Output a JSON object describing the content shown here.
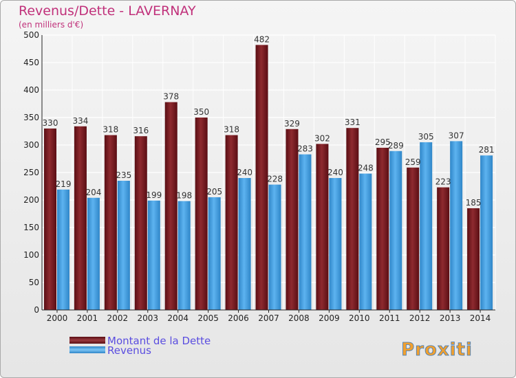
{
  "chart_data": {
    "type": "bar",
    "title": "Revenus/Dette - LAVERNAY",
    "subtitle": "(en milliers d'€)",
    "categories": [
      "2000",
      "2001",
      "2002",
      "2003",
      "2004",
      "2005",
      "2006",
      "2007",
      "2008",
      "2009",
      "2010",
      "2011",
      "2012",
      "2013",
      "2014"
    ],
    "series": [
      {
        "name": "Montant de la Dette",
        "color": "#7a1e22",
        "values": [
          330,
          334,
          318,
          316,
          378,
          350,
          318,
          482,
          329,
          302,
          331,
          295,
          259,
          223,
          185
        ]
      },
      {
        "name": "Revenus",
        "color": "#4aa3e6",
        "values": [
          219,
          204,
          235,
          199,
          198,
          205,
          240,
          228,
          283,
          240,
          248,
          289,
          305,
          307,
          281
        ]
      }
    ],
    "ylim": [
      0,
      500
    ],
    "yticks": [
      0,
      50,
      100,
      150,
      200,
      250,
      300,
      350,
      400,
      450,
      500
    ],
    "grid": true,
    "legend_position": "bottom-left"
  },
  "watermark": "Proxiti"
}
